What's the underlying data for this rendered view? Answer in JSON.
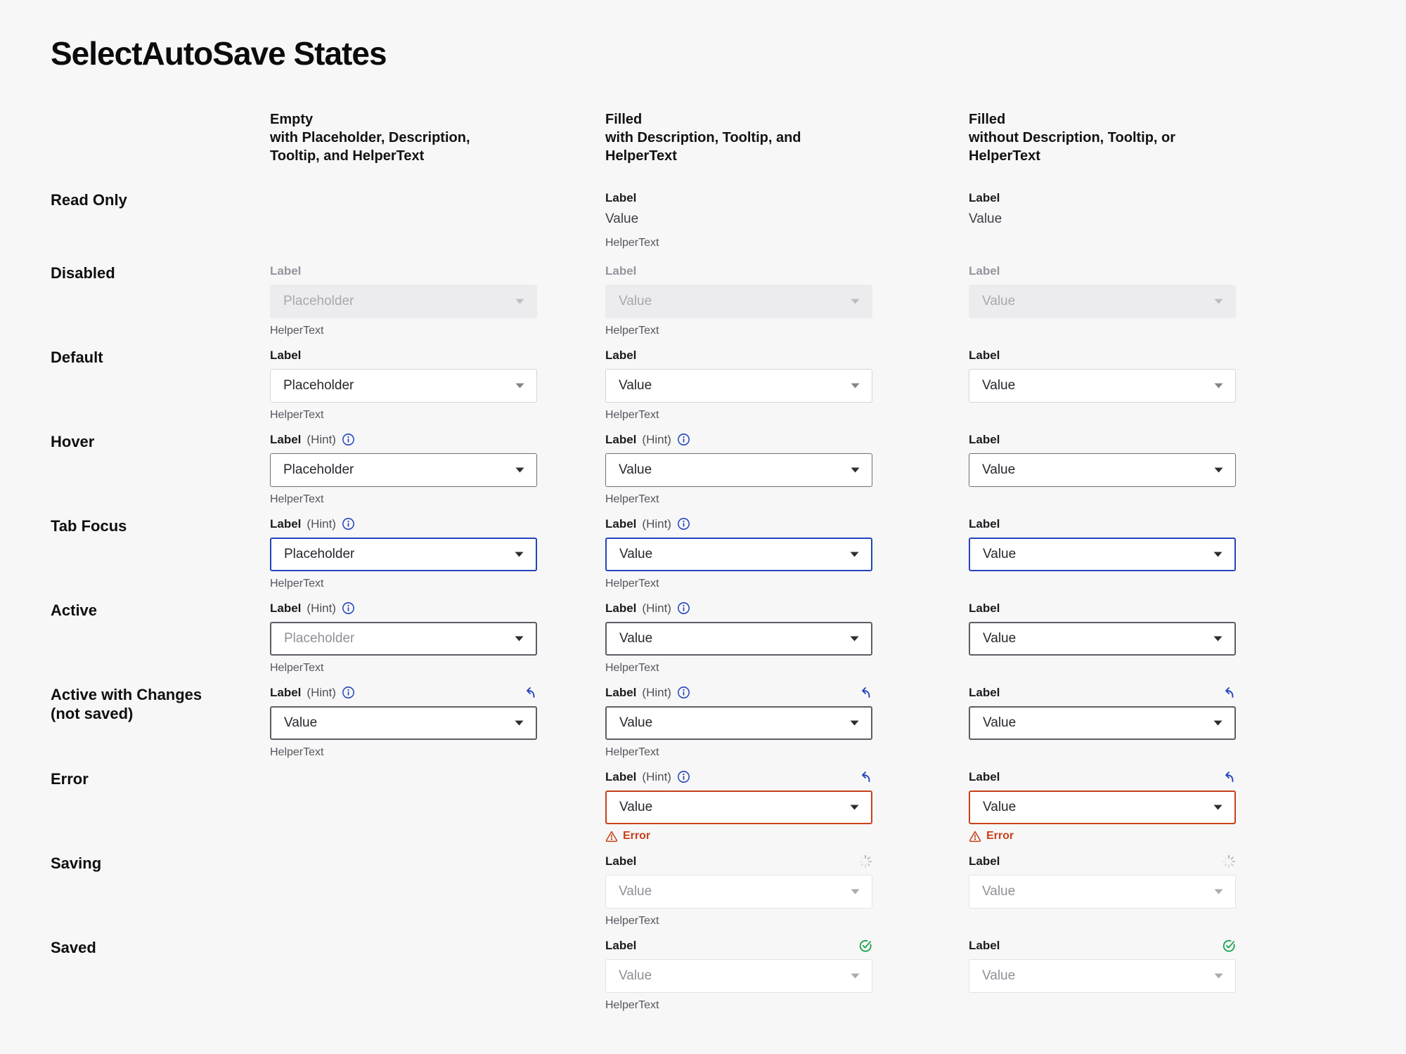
{
  "page": {
    "title": "SelectAutoSave States"
  },
  "colors": {
    "accent_blue": "#2443bd",
    "error_red": "#c8401a",
    "success_green": "#17a24a",
    "page_background": "#f7f7f7"
  },
  "columns": [
    {
      "title": "Empty\nwith Placeholder, Description,\nTooltip, and HelperText"
    },
    {
      "title": "Filled\nwith Description, Tooltip, and HelperText"
    },
    {
      "title": "Filled\nwithout Description, Tooltip, or HelperText"
    }
  ],
  "rows": [
    {
      "label": "Read Only",
      "cells": [
        null,
        {
          "type": "readonly",
          "label": "Label",
          "value": "Value",
          "helper": "HelperText"
        },
        {
          "type": "readonly",
          "label": "Label",
          "value": "Value"
        }
      ]
    },
    {
      "label": "Disabled",
      "cells": [
        {
          "type": "select",
          "style": "disabled",
          "label": "Label",
          "label_muted": true,
          "value": "Placeholder",
          "helper": "HelperText"
        },
        {
          "type": "select",
          "style": "disabled",
          "label": "Label",
          "label_muted": true,
          "value": "Value",
          "helper": "HelperText"
        },
        {
          "type": "select",
          "style": "disabled",
          "label": "Label",
          "label_muted": true,
          "value": "Value"
        }
      ]
    },
    {
      "label": "Default",
      "cells": [
        {
          "type": "select",
          "style": "default",
          "label": "Label",
          "value": "Placeholder",
          "helper": "HelperText"
        },
        {
          "type": "select",
          "style": "default",
          "label": "Label",
          "value": "Value",
          "helper": "HelperText"
        },
        {
          "type": "select",
          "style": "default",
          "label": "Label",
          "value": "Value"
        }
      ]
    },
    {
      "label": "Hover",
      "cells": [
        {
          "type": "select",
          "style": "hover",
          "label": "Label",
          "hint": "(Hint)",
          "tooltip": true,
          "value": "Placeholder",
          "helper": "HelperText"
        },
        {
          "type": "select",
          "style": "hover",
          "label": "Label",
          "hint": "(Hint)",
          "tooltip": true,
          "value": "Value",
          "helper": "HelperText"
        },
        {
          "type": "select",
          "style": "hover",
          "label": "Label",
          "value": "Value"
        }
      ]
    },
    {
      "label": "Tab Focus",
      "cells": [
        {
          "type": "select",
          "style": "focus",
          "label": "Label",
          "hint": "(Hint)",
          "tooltip": true,
          "value": "Placeholder",
          "helper": "HelperText"
        },
        {
          "type": "select",
          "style": "focus",
          "label": "Label",
          "hint": "(Hint)",
          "tooltip": true,
          "value": "Value",
          "helper": "HelperText"
        },
        {
          "type": "select",
          "style": "focus",
          "label": "Label",
          "value": "Value"
        }
      ]
    },
    {
      "label": "Active",
      "cells": [
        {
          "type": "select",
          "style": "active",
          "label": "Label",
          "hint": "(Hint)",
          "tooltip": true,
          "value": "Placeholder",
          "value_tone": "gray",
          "helper": "HelperText"
        },
        {
          "type": "select",
          "style": "active",
          "label": "Label",
          "hint": "(Hint)",
          "tooltip": true,
          "value": "Value",
          "helper": "HelperText"
        },
        {
          "type": "select",
          "style": "active",
          "label": "Label",
          "value": "Value"
        }
      ]
    },
    {
      "label": "Active with Changes\n(not saved)",
      "cells": [
        {
          "type": "select",
          "style": "active",
          "label": "Label",
          "hint": "(Hint)",
          "tooltip": true,
          "trailing": "undo",
          "value": "Value",
          "helper": "HelperText"
        },
        {
          "type": "select",
          "style": "active",
          "label": "Label",
          "hint": "(Hint)",
          "tooltip": true,
          "trailing": "undo",
          "value": "Value",
          "helper": "HelperText"
        },
        {
          "type": "select",
          "style": "active",
          "label": "Label",
          "trailing": "undo",
          "value": "Value"
        }
      ]
    },
    {
      "label": "Error",
      "cells": [
        null,
        {
          "type": "select",
          "style": "error",
          "label": "Label",
          "hint": "(Hint)",
          "tooltip": true,
          "trailing": "undo",
          "value": "Value",
          "error": "Error"
        },
        {
          "type": "select",
          "style": "error",
          "label": "Label",
          "trailing": "undo",
          "value": "Value",
          "error": "Error"
        }
      ]
    },
    {
      "label": "Saving",
      "cells": [
        null,
        {
          "type": "select",
          "style": "muted",
          "label": "Label",
          "trailing": "spinner",
          "value": "Value",
          "value_tone": "gray",
          "helper": "HelperText"
        },
        {
          "type": "select",
          "style": "muted",
          "label": "Label",
          "trailing": "spinner",
          "value": "Value",
          "value_tone": "gray"
        }
      ]
    },
    {
      "label": "Saved",
      "cells": [
        null,
        {
          "type": "select",
          "style": "muted",
          "label": "Label",
          "trailing": "check",
          "value": "Value",
          "value_tone": "gray",
          "helper": "HelperText"
        },
        {
          "type": "select",
          "style": "muted",
          "label": "Label",
          "trailing": "check",
          "value": "Value",
          "value_tone": "gray"
        }
      ]
    }
  ]
}
